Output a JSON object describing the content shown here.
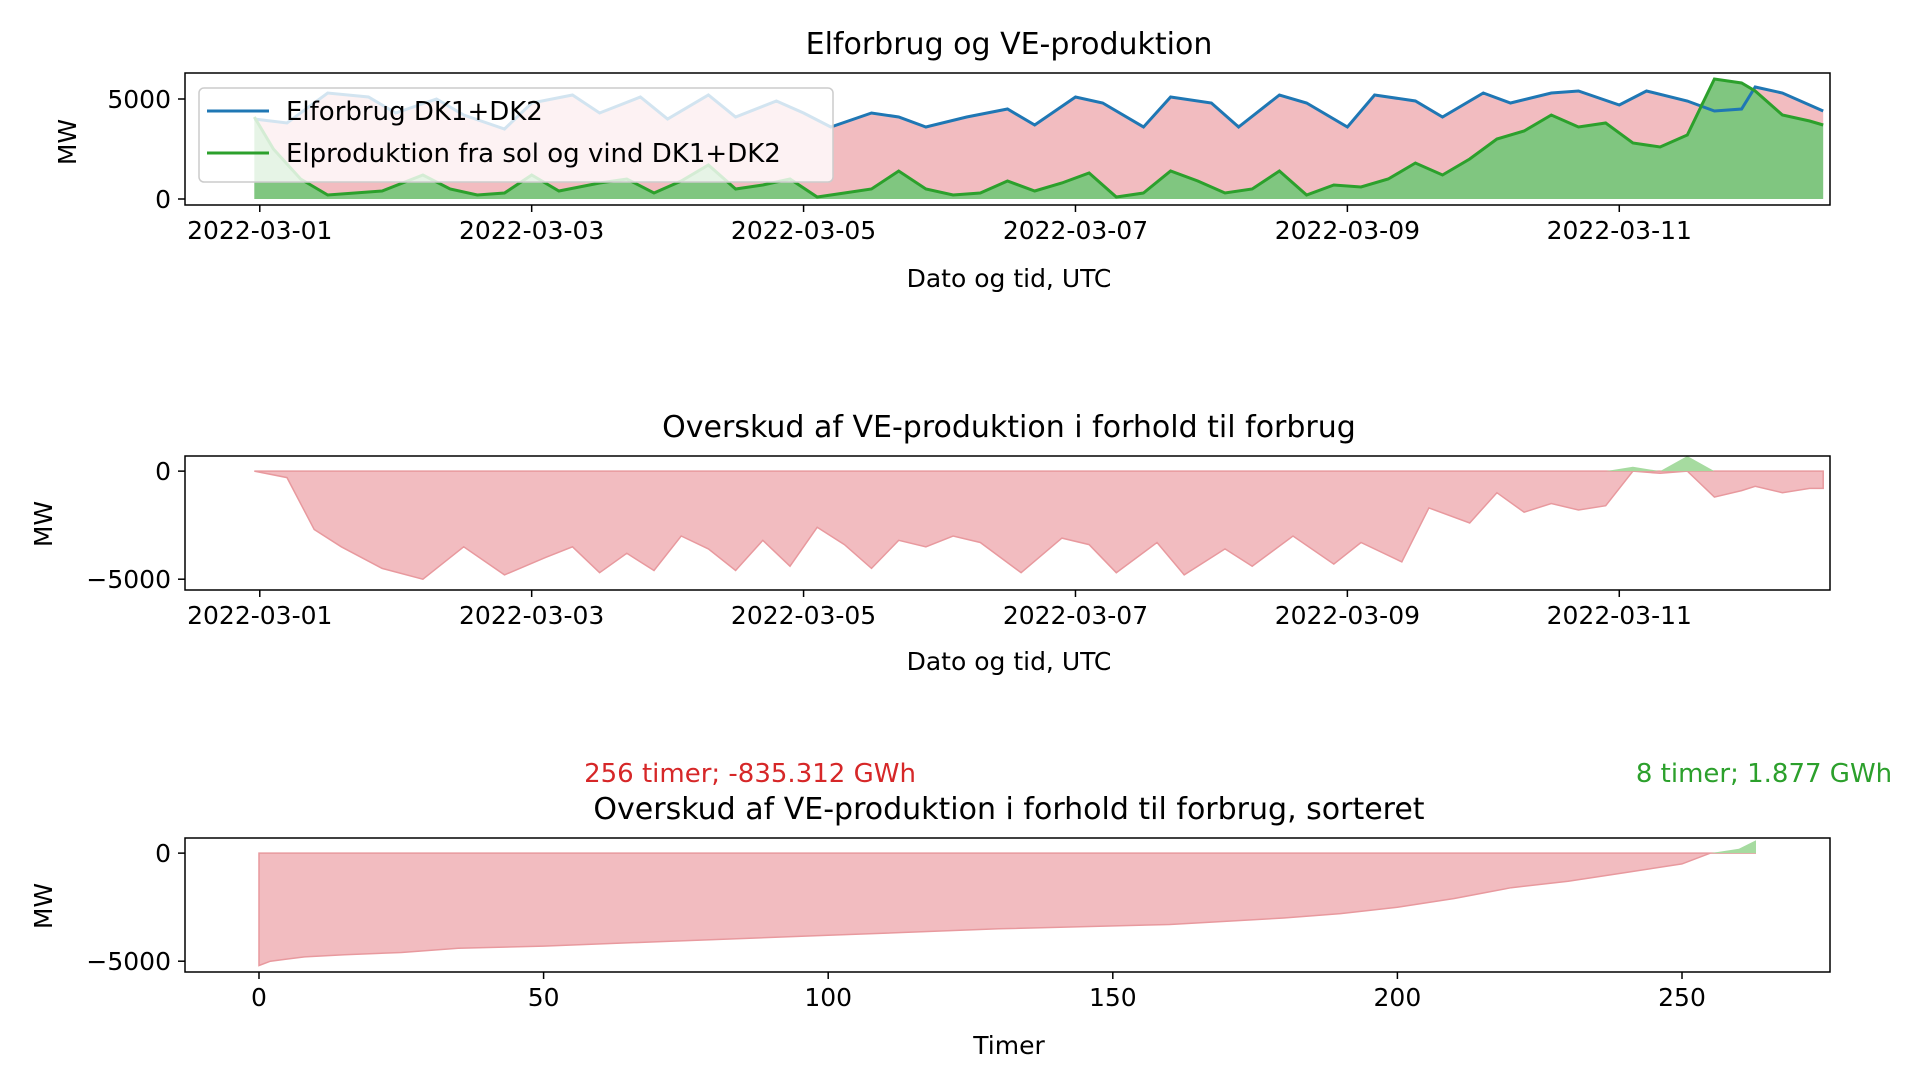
{
  "colors": {
    "consumption": "#1f77b4",
    "production": "#2ca02c",
    "deficit_fill": "#f2bcc0",
    "deficit_line": "#e8999e",
    "surplus_fill": "#a6dba0",
    "red_text": "#d62728",
    "green_text": "#2ca02c"
  },
  "chart_data": [
    {
      "type": "area",
      "title": "Elforbrug og VE-produktion",
      "xlabel": "Dato og tid, UTC",
      "ylabel": "MW",
      "x_ticks": [
        "2022-03-01",
        "2022-03-03",
        "2022-03-05",
        "2022-03-07",
        "2022-03-09",
        "2022-03-11"
      ],
      "y_ticks": [
        0,
        5000
      ],
      "ylim": [
        -300,
        6300
      ],
      "xlim_days": [
        -0.55,
        11.55
      ],
      "legend_position": "upper-left",
      "series": [
        {
          "name": "Elforbrug DK1+DK2",
          "x_days": [
            -0.04,
            0.2,
            0.5,
            0.8,
            1.0,
            1.3,
            1.5,
            1.8,
            2.0,
            2.3,
            2.5,
            2.8,
            3.0,
            3.3,
            3.5,
            3.8,
            4.0,
            4.2,
            4.5,
            4.7,
            4.9,
            5.2,
            5.5,
            5.7,
            6.0,
            6.2,
            6.5,
            6.7,
            7.0,
            7.2,
            7.5,
            7.7,
            8.0,
            8.2,
            8.5,
            8.7,
            9.0,
            9.2,
            9.5,
            9.7,
            10.0,
            10.2,
            10.5,
            10.7,
            10.9,
            11.0,
            11.2,
            11.5
          ],
          "values": [
            4000,
            3800,
            5300,
            5100,
            4300,
            5000,
            4200,
            3500,
            4800,
            5200,
            4300,
            5100,
            4000,
            5200,
            4100,
            4900,
            4300,
            3600,
            4300,
            4100,
            3600,
            4100,
            4500,
            3700,
            5100,
            4800,
            3600,
            5100,
            4800,
            3600,
            5200,
            4800,
            3600,
            5200,
            4900,
            4100,
            5300,
            4800,
            5300,
            5400,
            4700,
            5400,
            4900,
            4400,
            4500,
            5600,
            5300,
            4400
          ]
        },
        {
          "name": "Elproduktion fra sol og vind DK1+DK2",
          "x_days": [
            -0.04,
            0.1,
            0.3,
            0.5,
            0.7,
            0.9,
            1.2,
            1.4,
            1.6,
            1.8,
            2.0,
            2.2,
            2.5,
            2.7,
            2.9,
            3.1,
            3.3,
            3.5,
            3.7,
            3.9,
            4.1,
            4.3,
            4.5,
            4.7,
            4.9,
            5.1,
            5.3,
            5.5,
            5.7,
            5.9,
            6.1,
            6.3,
            6.5,
            6.7,
            6.9,
            7.1,
            7.3,
            7.5,
            7.7,
            7.9,
            8.1,
            8.3,
            8.5,
            8.7,
            8.9,
            9.1,
            9.3,
            9.5,
            9.7,
            9.9,
            10.1,
            10.3,
            10.5,
            10.7,
            10.9,
            11.0,
            11.2,
            11.4,
            11.5
          ],
          "values": [
            4100,
            2500,
            1000,
            200,
            300,
            400,
            1200,
            500,
            200,
            300,
            1200,
            400,
            800,
            1000,
            300,
            900,
            1700,
            500,
            700,
            1000,
            100,
            300,
            500,
            1400,
            500,
            200,
            300,
            900,
            400,
            800,
            1300,
            100,
            300,
            1400,
            900,
            300,
            500,
            1400,
            200,
            700,
            600,
            1000,
            1800,
            1200,
            2000,
            3000,
            3400,
            4200,
            3600,
            3800,
            2800,
            2600,
            3200,
            6000,
            5800,
            5400,
            4200,
            3900,
            3700
          ]
        }
      ]
    },
    {
      "type": "area",
      "title": "Overskud af VE-produktion i forhold til forbrug",
      "xlabel": "Dato og tid, UTC",
      "ylabel": "MW",
      "x_ticks": [
        "2022-03-01",
        "2022-03-03",
        "2022-03-05",
        "2022-03-07",
        "2022-03-09",
        "2022-03-11"
      ],
      "y_ticks": [
        -5000,
        0
      ],
      "ylim": [
        -5500,
        700
      ],
      "xlim_days": [
        -0.55,
        11.55
      ],
      "series": [
        {
          "name": "",
          "x_days": [
            -0.04,
            0.2,
            0.4,
            0.6,
            0.9,
            1.2,
            1.5,
            1.8,
            2.1,
            2.3,
            2.5,
            2.7,
            2.9,
            3.1,
            3.3,
            3.5,
            3.7,
            3.9,
            4.1,
            4.3,
            4.5,
            4.7,
            4.9,
            5.1,
            5.3,
            5.6,
            5.9,
            6.1,
            6.3,
            6.6,
            6.8,
            7.1,
            7.3,
            7.6,
            7.9,
            8.1,
            8.4,
            8.6,
            8.9,
            9.1,
            9.3,
            9.5,
            9.7,
            9.9,
            10.1,
            10.3,
            10.5,
            10.7,
            10.9,
            11.0,
            11.2,
            11.4,
            11.5
          ],
          "values": [
            0,
            -300,
            -2700,
            -3500,
            -4500,
            -5000,
            -3500,
            -4800,
            -4000,
            -3500,
            -4700,
            -3800,
            -4600,
            -3000,
            -3600,
            -4600,
            -3200,
            -4400,
            -2600,
            -3400,
            -4500,
            -3200,
            -3500,
            -3000,
            -3300,
            -4700,
            -3100,
            -3400,
            -4700,
            -3300,
            -4800,
            -3600,
            -4400,
            -3000,
            -4300,
            -3300,
            -4200,
            -1700,
            -2400,
            -1000,
            -1900,
            -1500,
            -1800,
            -1600,
            200,
            -100,
            700,
            -1200,
            -900,
            -700,
            -1000,
            -800,
            -800
          ]
        }
      ]
    },
    {
      "type": "area",
      "title": "Overskud af VE-produktion i forhold til forbrug, sorteret",
      "xlabel": "Timer",
      "ylabel": "MW",
      "x_ticks": [
        0,
        50,
        100,
        150,
        200,
        250
      ],
      "y_ticks": [
        -5000,
        0
      ],
      "xlim": [
        -13,
        276
      ],
      "ylim": [
        -5500,
        700
      ],
      "annotations": {
        "deficit": "256 timer; -835.312 GWh",
        "surplus": "8 timer; 1.877 GWh"
      },
      "series": [
        {
          "name": "",
          "x": [
            0,
            2,
            5,
            8,
            15,
            25,
            35,
            50,
            70,
            100,
            130,
            160,
            180,
            190,
            200,
            210,
            220,
            230,
            240,
            250,
            255,
            260,
            263
          ],
          "values": [
            -5200,
            -5000,
            -4900,
            -4800,
            -4700,
            -4600,
            -4400,
            -4300,
            -4100,
            -3800,
            -3500,
            -3300,
            -3000,
            -2800,
            -2500,
            -2100,
            -1600,
            -1300,
            -900,
            -500,
            0,
            200,
            600
          ]
        }
      ]
    }
  ]
}
